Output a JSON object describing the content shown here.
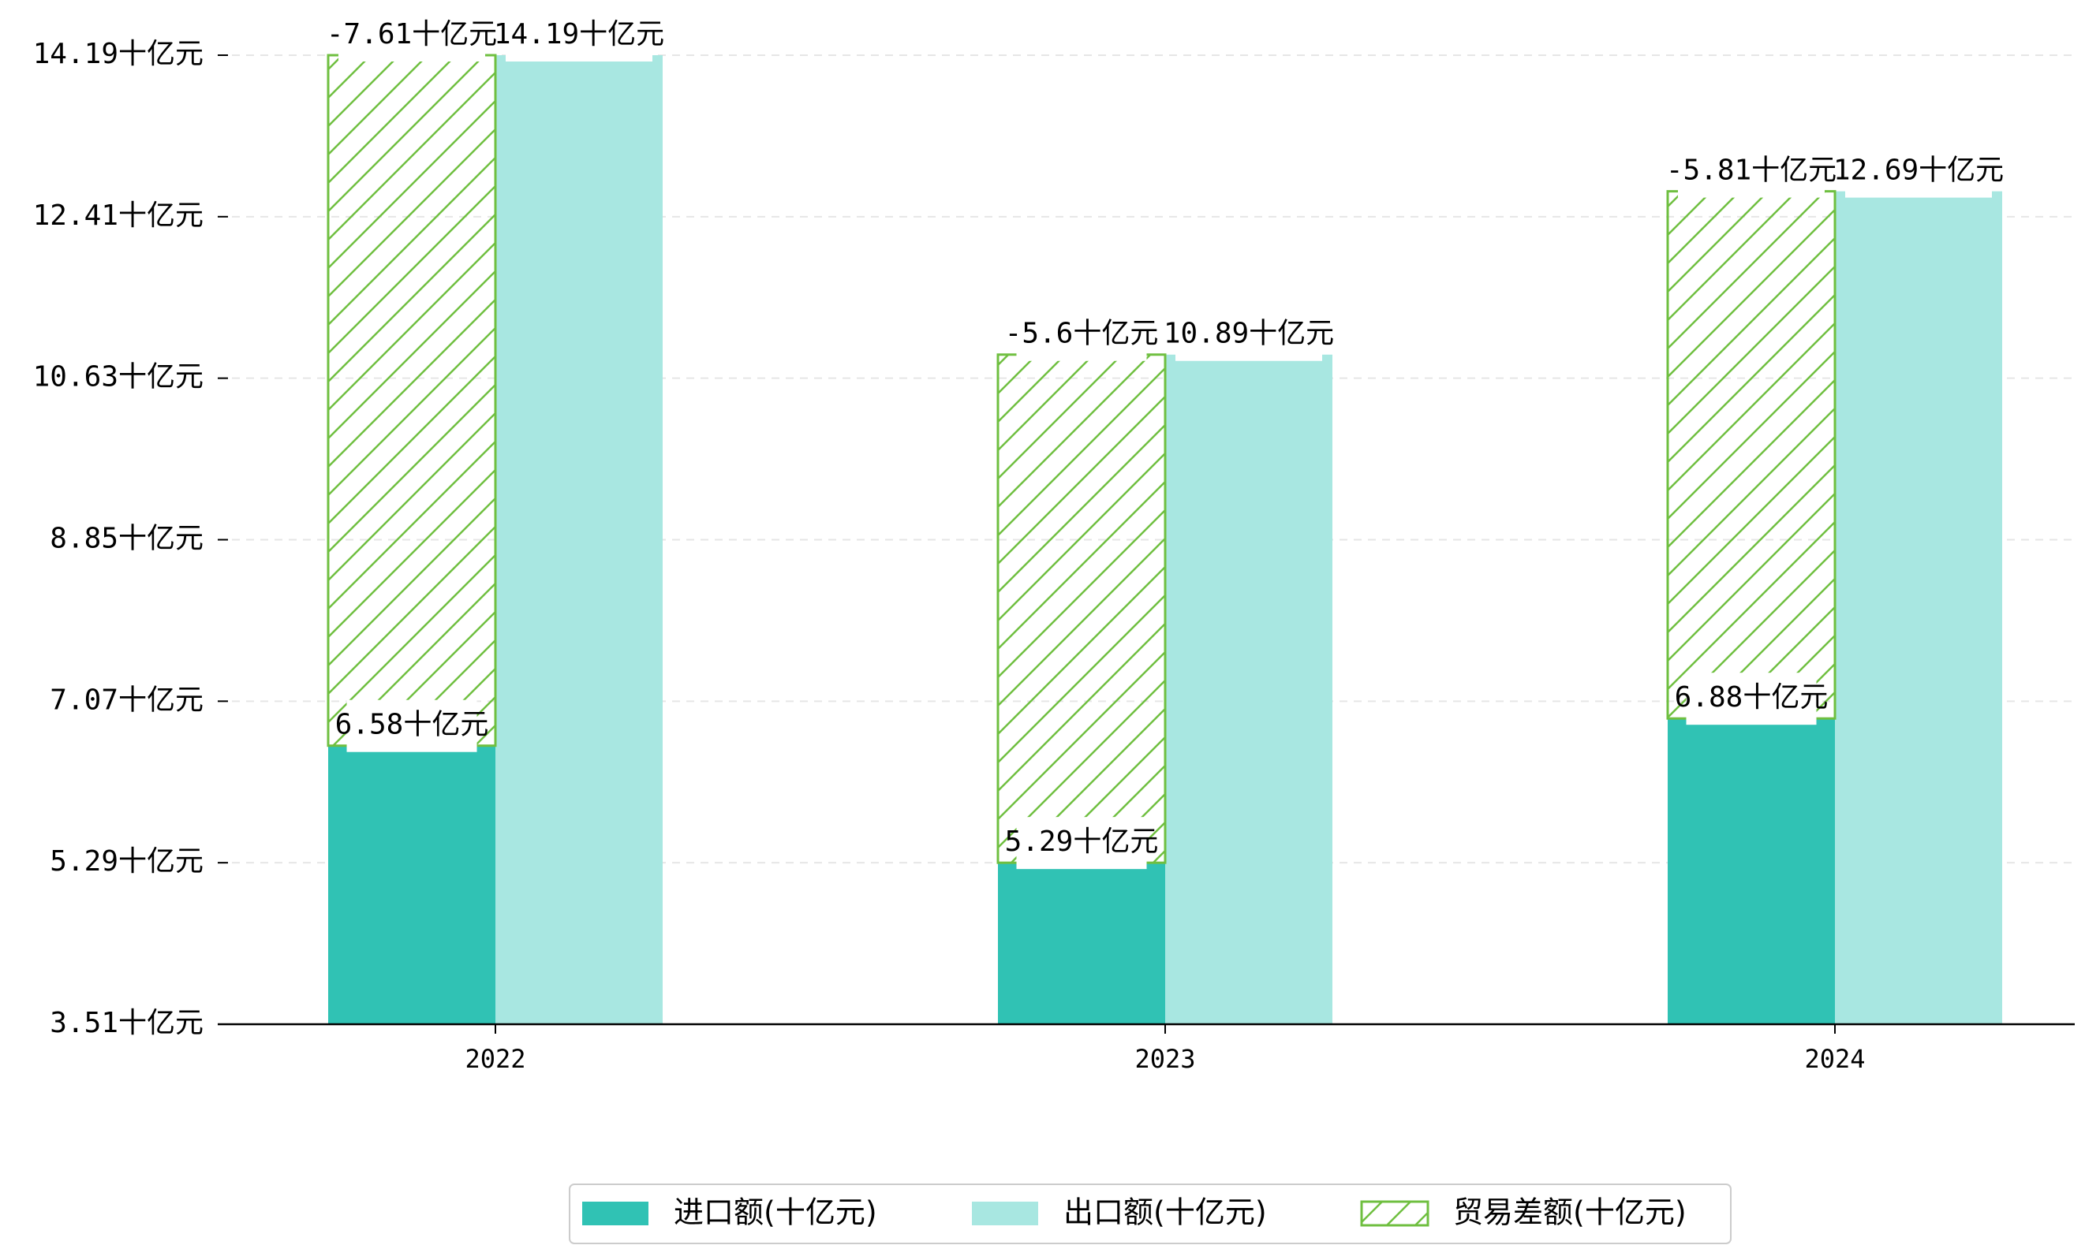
{
  "chart_data": {
    "type": "bar",
    "title": "",
    "xlabel": "",
    "ylabel": "",
    "categories": [
      "2022",
      "2023",
      "2024"
    ],
    "unit_suffix": "十亿元",
    "yticks": [
      "3.51十亿元",
      "5.29十亿元",
      "7.07十亿元",
      "8.85十亿元",
      "10.63十亿元",
      "12.41十亿元",
      "14.19十亿元"
    ],
    "ylim": [
      3.51,
      14.19
    ],
    "grid": true,
    "legend_position": "bottom-center",
    "series": [
      {
        "name": "进口额(十亿元)",
        "color": "#30c2b4",
        "values": [
          6.58,
          5.29,
          6.88
        ],
        "labels": [
          "6.58十亿元",
          "5.29十亿元",
          "6.88十亿元"
        ]
      },
      {
        "name": "出口额(十亿元)",
        "color": "#a8e7e1",
        "values": [
          14.19,
          10.89,
          12.69
        ],
        "labels": [
          "14.19十亿元",
          "10.89十亿元",
          "12.69十亿元"
        ]
      },
      {
        "name": "贸易差额(十亿元)",
        "color": "#6fbf40",
        "pattern": "hatch",
        "stacked_on": "进口额(十亿元)",
        "values": [
          -7.61,
          -5.6,
          -5.81
        ],
        "labels": [
          "-7.61十亿元",
          "-5.6十亿元",
          "-5.81十亿元"
        ]
      }
    ]
  }
}
